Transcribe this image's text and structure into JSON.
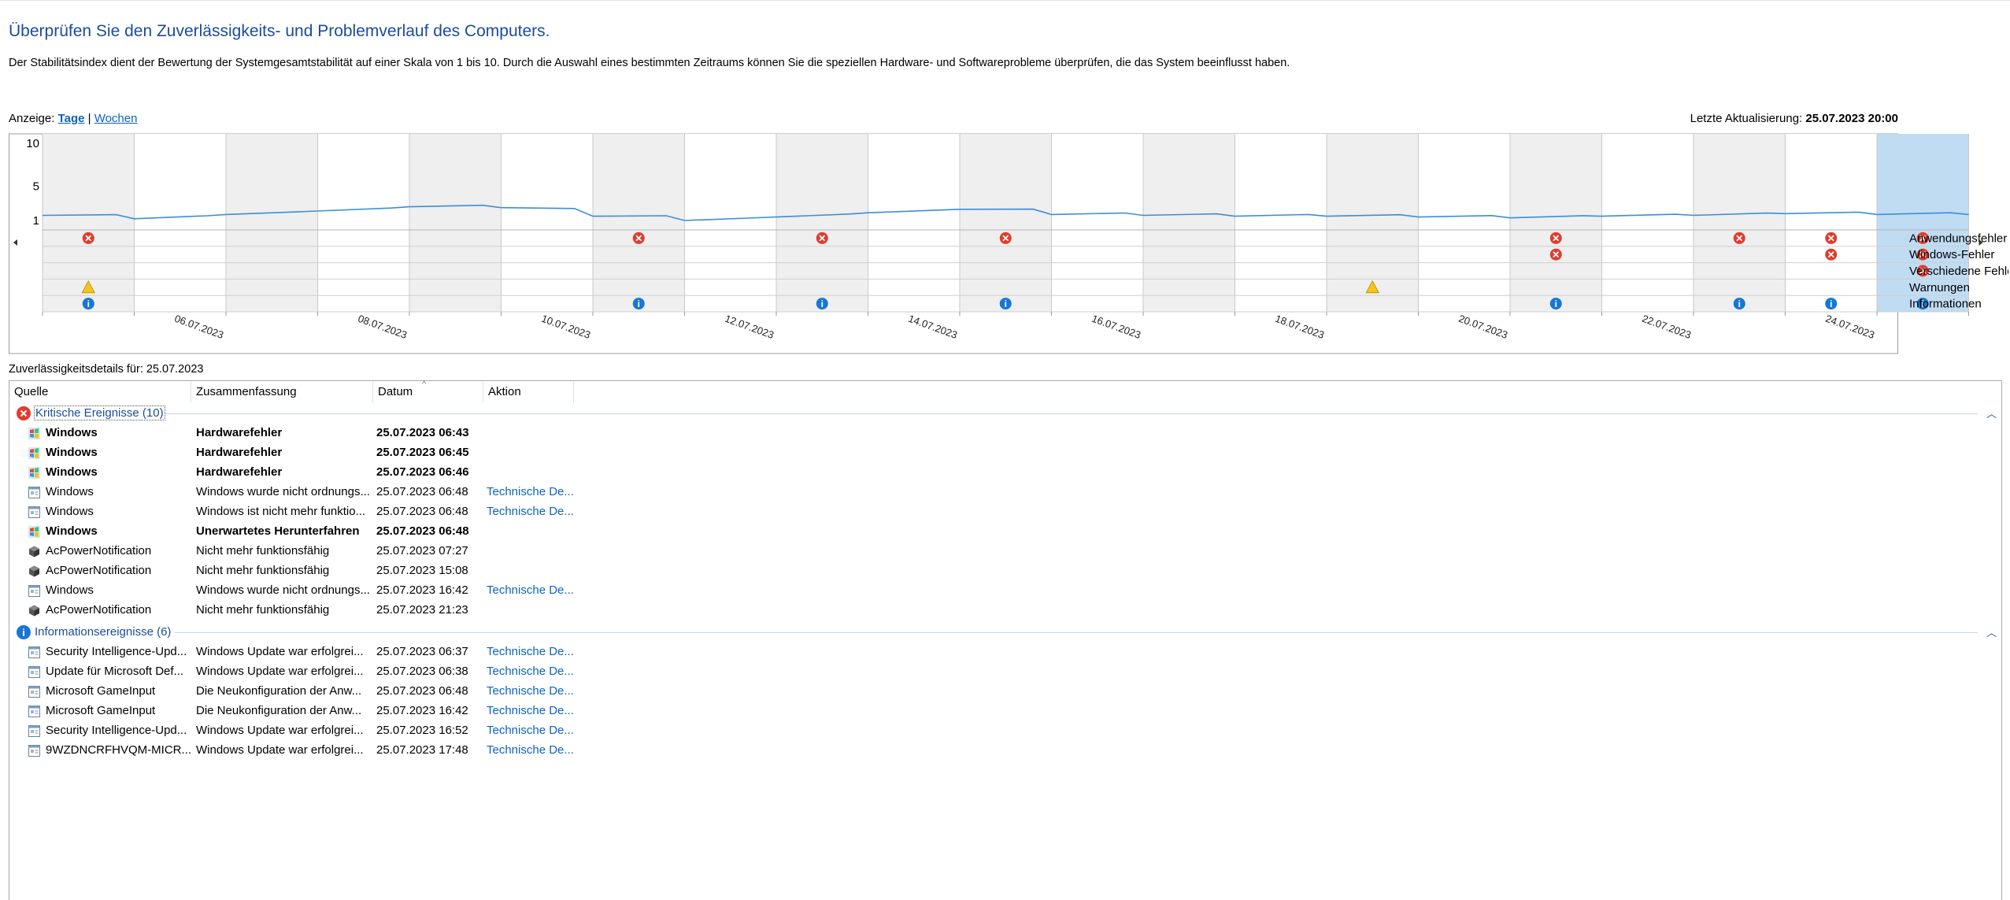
{
  "header": {
    "title": "Überprüfen Sie den Zuverlässigkeits- und Problemverlauf des Computers.",
    "description": "Der Stabilitätsindex dient der Bewertung der Systemgesamtstabilität auf einer Skala von 1 bis 10. Durch die Auswahl eines bestimmten Zeitraums können Sie die speziellen Hardware- und Softwareprobleme überprüfen, die das System beeinflusst haben."
  },
  "view": {
    "label": "Anzeige:",
    "days": "Tage",
    "separator": "|",
    "weeks": "Wochen",
    "last_update_label": "Letzte Aktualisierung:",
    "last_update_value": "25.07.2023 20:00"
  },
  "chart_data": {
    "type": "line",
    "title": "",
    "ylim": [
      1,
      10
    ],
    "y_ticks": [
      "10",
      "5",
      "1"
    ],
    "x": [
      "05.07.2023",
      "06.07.2023",
      "07.07.2023",
      "08.07.2023",
      "09.07.2023",
      "10.07.2023",
      "11.07.2023",
      "12.07.2023",
      "13.07.2023",
      "14.07.2023",
      "15.07.2023",
      "16.07.2023",
      "17.07.2023",
      "18.07.2023",
      "19.07.2023",
      "20.07.2023",
      "21.07.2023",
      "22.07.2023",
      "23.07.2023",
      "24.07.2023",
      "25.07.2023"
    ],
    "x_tick_labels": [
      "06.07.2023",
      "08.07.2023",
      "10.07.2023",
      "12.07.2023",
      "14.07.2023",
      "16.07.2023",
      "18.07.2023",
      "20.07.2023",
      "22.07.2023",
      "24.07.2023"
    ],
    "series": [
      {
        "values": [
          1.6,
          1.2,
          1.7,
          2.1,
          2.6,
          2.5,
          1.5,
          1.0,
          1.4,
          1.9,
          2.3,
          1.7,
          1.6,
          1.5,
          1.5,
          1.4,
          1.3,
          1.5,
          1.6,
          1.8,
          1.7
        ]
      }
    ],
    "selected_index": 20,
    "shaded_days": [
      0,
      2,
      4,
      6,
      8,
      10,
      12,
      14,
      16,
      18
    ],
    "event_rows": [
      "Anwendungsfehler",
      "Windows-Fehler",
      "Verschiedene Fehler",
      "Warnungen",
      "Informationen"
    ],
    "events": {
      "Anwendungsfehler": [
        0,
        6,
        8,
        10,
        16,
        18,
        19,
        20
      ],
      "Windows-Fehler": [
        16,
        19,
        20
      ],
      "Verschiedene Fehler": [
        20
      ],
      "Warnungen": [],
      "Informationen": [
        0,
        6,
        8,
        10,
        16,
        18,
        19,
        20
      ]
    }
  },
  "details_label": "Zuverlässigkeitsdetails für: 25.07.2023",
  "columns": [
    "Quelle",
    "Zusammenfassung",
    "Datum",
    "Aktion"
  ],
  "groups": [
    {
      "label": "Kritische Ereignisse (10)",
      "type": "critical",
      "rows": [
        {
          "source": "Windows",
          "summary": "Hardwarefehler",
          "date": "25.07.2023 06:43",
          "action": "",
          "bold": true,
          "icon": "windows"
        },
        {
          "source": "Windows",
          "summary": "Hardwarefehler",
          "date": "25.07.2023 06:45",
          "action": "",
          "bold": true,
          "icon": "windows"
        },
        {
          "source": "Windows",
          "summary": "Hardwarefehler",
          "date": "25.07.2023 06:46",
          "action": "",
          "bold": true,
          "icon": "windows"
        },
        {
          "source": "Windows",
          "summary": "Windows wurde nicht ordnungs...",
          "date": "25.07.2023 06:48",
          "action": "Technische De...",
          "bold": false,
          "icon": "app"
        },
        {
          "source": "Windows",
          "summary": "Windows ist nicht mehr funktio...",
          "date": "25.07.2023 06:48",
          "action": "Technische De...",
          "bold": false,
          "icon": "app"
        },
        {
          "source": "Windows",
          "summary": "Unerwartetes Herunterfahren",
          "date": "25.07.2023 06:48",
          "action": "",
          "bold": true,
          "icon": "windows"
        },
        {
          "source": "AcPowerNotification",
          "summary": "Nicht mehr funktionsfähig",
          "date": "25.07.2023 07:27",
          "action": "",
          "bold": false,
          "icon": "cube"
        },
        {
          "source": "AcPowerNotification",
          "summary": "Nicht mehr funktionsfähig",
          "date": "25.07.2023 15:08",
          "action": "",
          "bold": false,
          "icon": "cube"
        },
        {
          "source": "Windows",
          "summary": "Windows wurde nicht ordnungs...",
          "date": "25.07.2023 16:42",
          "action": "Technische De...",
          "bold": false,
          "icon": "app"
        },
        {
          "source": "AcPowerNotification",
          "summary": "Nicht mehr funktionsfähig",
          "date": "25.07.2023 21:23",
          "action": "",
          "bold": false,
          "icon": "cube"
        }
      ]
    },
    {
      "label": "Informationsereignisse (6)",
      "type": "info",
      "rows": [
        {
          "source": "Security Intelligence-Upd...",
          "summary": "Windows Update war erfolgrei...",
          "date": "25.07.2023 06:37",
          "action": "Technische De...",
          "bold": false,
          "icon": "app"
        },
        {
          "source": "Update für Microsoft Def...",
          "summary": "Windows Update war erfolgrei...",
          "date": "25.07.2023 06:38",
          "action": "Technische De...",
          "bold": false,
          "icon": "app"
        },
        {
          "source": "Microsoft GameInput",
          "summary": "Die Neukonfiguration der Anw...",
          "date": "25.07.2023 06:48",
          "action": "Technische De...",
          "bold": false,
          "icon": "app"
        },
        {
          "source": "Microsoft GameInput",
          "summary": "Die Neukonfiguration der Anw...",
          "date": "25.07.2023 16:42",
          "action": "Technische De...",
          "bold": false,
          "icon": "app"
        },
        {
          "source": "Security Intelligence-Upd...",
          "summary": "Windows Update war erfolgrei...",
          "date": "25.07.2023 16:52",
          "action": "Technische De...",
          "bold": false,
          "icon": "app"
        },
        {
          "source": "9WZDNCRFHVQM-MICR...",
          "summary": "Windows Update war erfolgrei...",
          "date": "25.07.2023 17:48",
          "action": "Technische De...",
          "bold": false,
          "icon": "app"
        }
      ]
    }
  ],
  "colors": {
    "accent": "#1a4c9c",
    "link": "#0b63c4",
    "error": "#e23b2e",
    "warning": "#f5c518",
    "info": "#1777d4",
    "line": "#3a8ed8",
    "selected": "#c0dcf3",
    "shade": "#efefef"
  }
}
